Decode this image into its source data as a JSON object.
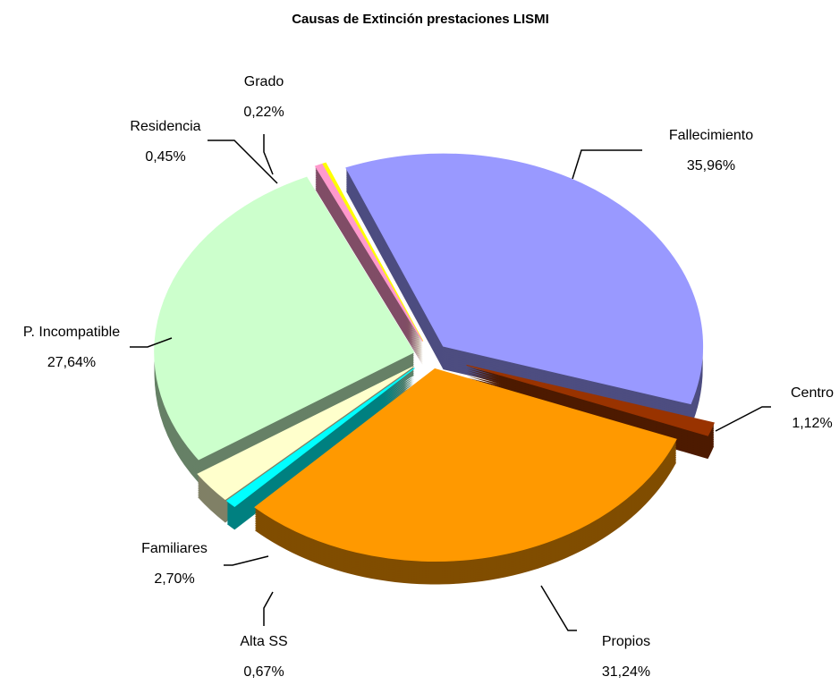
{
  "chart_data": {
    "type": "pie3d",
    "title": "Causas de Extinción prestaciones LISMI",
    "categories": [
      "Fallecimiento",
      "Centro",
      "Propios",
      "Alta SS",
      "Familiares",
      "P. Incompatible",
      "Residencia",
      "Grado"
    ],
    "values": [
      35.96,
      1.12,
      31.24,
      0.67,
      2.7,
      27.64,
      0.45,
      0.22
    ],
    "value_labels": [
      "35,96%",
      "1,12%",
      "31,24%",
      "0,67%",
      "2,70%",
      "27,64%",
      "0,45%",
      "0,22%"
    ],
    "colors": [
      "#9999ff",
      "#993300",
      "#ff9900",
      "#00ffff",
      "#ffffcc",
      "#ccffcc",
      "#ff99cc",
      "#ffff00"
    ]
  }
}
